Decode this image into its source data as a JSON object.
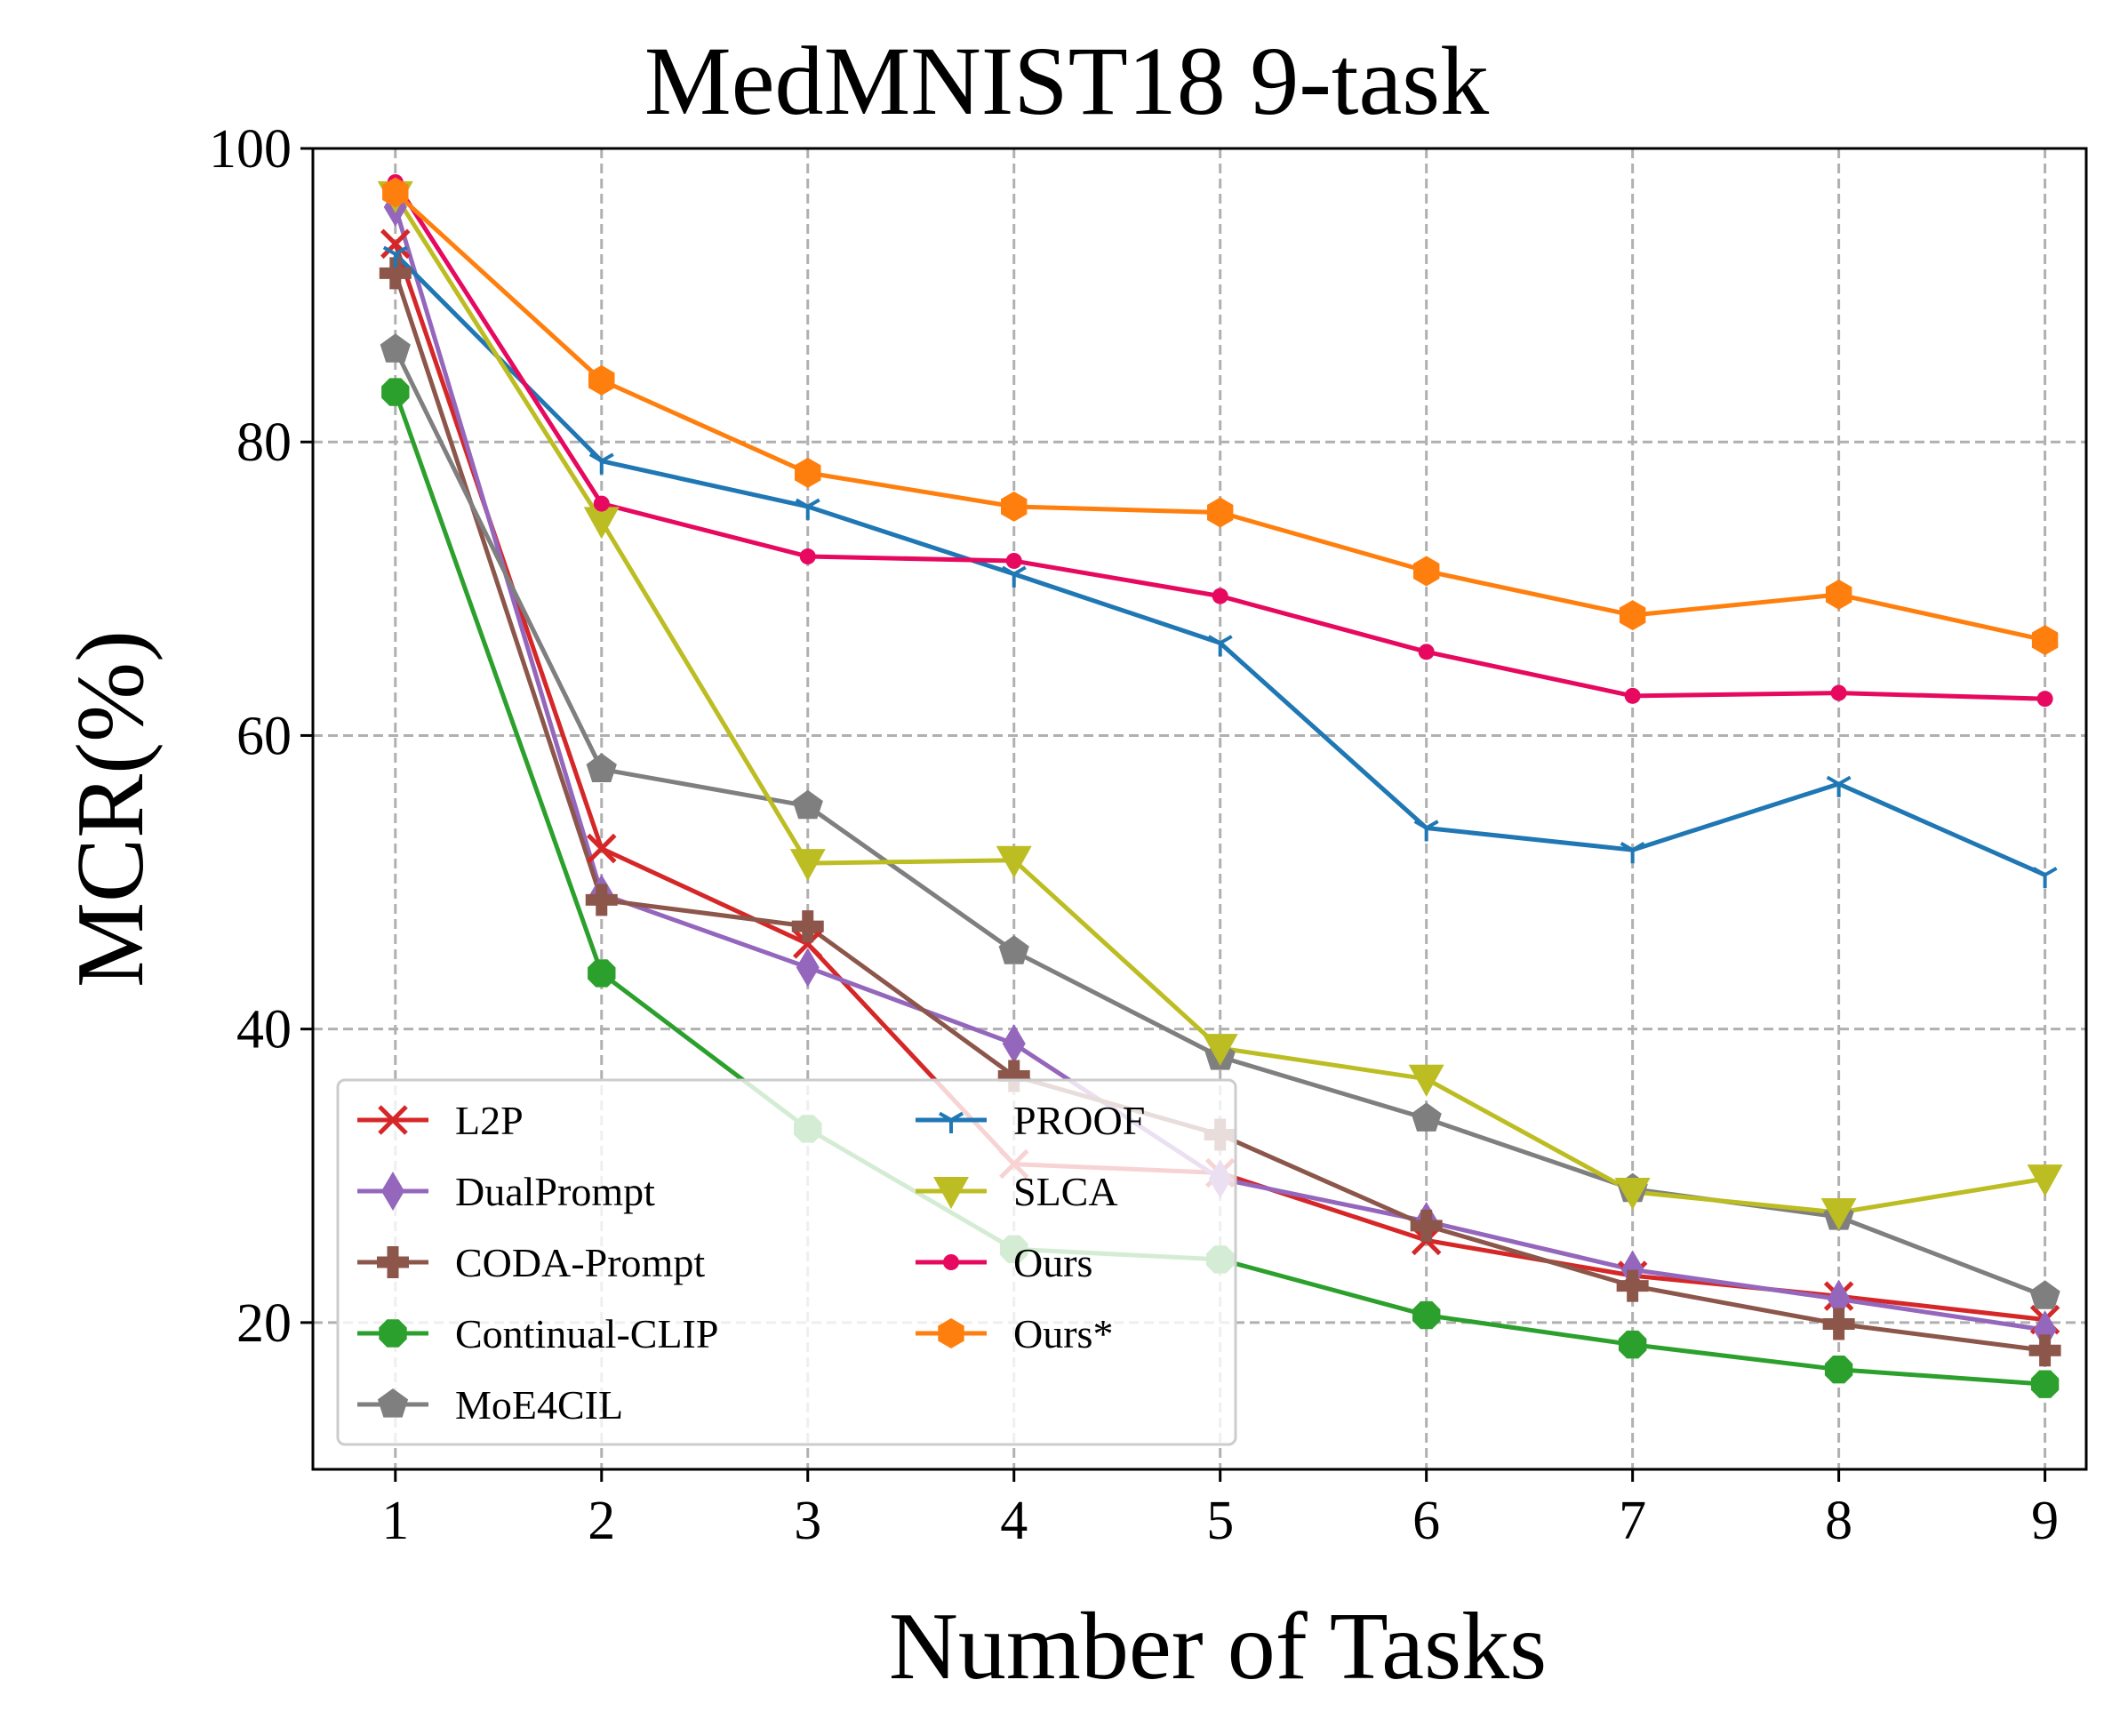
{
  "chart_data": {
    "type": "line",
    "title": "MedMNIST18 9-task",
    "xlabel": "Number of Tasks",
    "ylabel": "MCR(%)",
    "x": [
      1,
      2,
      3,
      4,
      5,
      6,
      7,
      8,
      9
    ],
    "xticks": [
      "1",
      "2",
      "3",
      "4",
      "5",
      "6",
      "7",
      "8",
      "9"
    ],
    "yticks": [
      "20",
      "40",
      "60",
      "80",
      "100"
    ],
    "xlim": [
      0.6,
      9.2
    ],
    "ylim": [
      10,
      100
    ],
    "grid": true,
    "legend_position": "lower-left",
    "series": [
      {
        "name": "L2P",
        "color": "#d62728",
        "marker": "x",
        "values": [
          93.5,
          52.3,
          45.8,
          30.8,
          30.2,
          25.6,
          23.2,
          21.8,
          20.2
        ]
      },
      {
        "name": "DualPrompt",
        "color": "#9467bd",
        "marker": "thin_diamond",
        "values": [
          96.0,
          49.2,
          44.2,
          39.0,
          29.8,
          26.9,
          23.6,
          21.6,
          19.5
        ]
      },
      {
        "name": "CODA-Prompt",
        "color": "#8c564b",
        "marker": "plus_filled",
        "values": [
          91.5,
          48.8,
          47.0,
          36.8,
          32.8,
          26.6,
          22.5,
          19.9,
          18.1
        ]
      },
      {
        "name": "Continual-CLIP",
        "color": "#2ca02c",
        "marker": "octagon",
        "values": [
          83.4,
          43.8,
          33.2,
          25.0,
          24.3,
          20.5,
          18.5,
          16.8,
          15.8
        ]
      },
      {
        "name": "MoE4CIL",
        "color": "#7f7f7f",
        "marker": "pentagon",
        "values": [
          86.3,
          57.7,
          55.2,
          45.3,
          38.1,
          33.9,
          29.1,
          27.2,
          21.8
        ]
      },
      {
        "name": "PROOF",
        "color": "#1f77b4",
        "marker": "tri_down",
        "values": [
          92.8,
          78.7,
          75.6,
          71.0,
          66.3,
          53.7,
          52.2,
          56.7,
          50.5
        ]
      },
      {
        "name": "SLCA",
        "color": "#bcbd22",
        "marker": "triangle_down",
        "values": [
          96.8,
          74.6,
          51.3,
          51.5,
          38.7,
          36.6,
          28.9,
          27.5,
          29.8
        ]
      },
      {
        "name": "Ours",
        "color": "#e6095f",
        "marker": "point",
        "values": [
          97.7,
          75.8,
          72.2,
          71.9,
          69.5,
          65.7,
          62.7,
          62.9,
          62.5
        ]
      },
      {
        "name": "Ours*",
        "color": "#ff7f0e",
        "marker": "hexagon",
        "values": [
          97.0,
          84.2,
          77.9,
          75.6,
          75.2,
          71.2,
          68.2,
          69.6,
          66.5
        ]
      }
    ]
  }
}
